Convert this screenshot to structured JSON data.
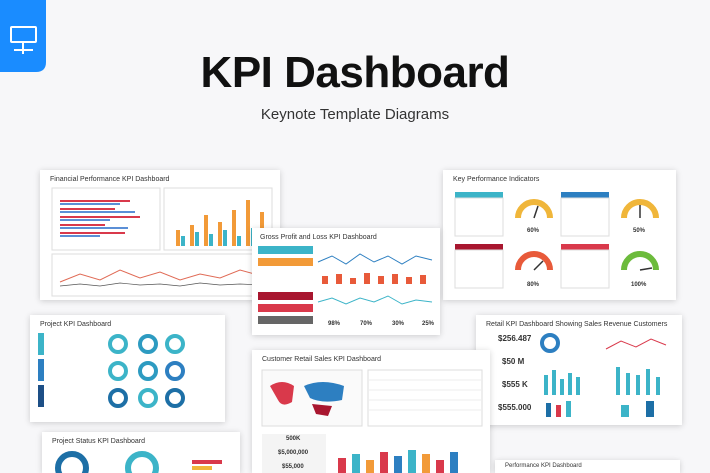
{
  "header": {
    "title": "KPI Dashboard",
    "subtitle": "Keynote Template Diagrams"
  },
  "slides": [
    {
      "title": "Financial Performance KPI Dashboard"
    },
    {
      "title": "Key Performance Indicators",
      "gauges": [
        "60%",
        "50%",
        "80%",
        "100%"
      ]
    },
    {
      "title": "Gross Profit and Loss KPI Dashboard",
      "stats": [
        "98%",
        "70%",
        "30%",
        "25%"
      ]
    },
    {
      "title": "Project KPI Dashboard"
    },
    {
      "title": "Retail KPI Dashboard Showing Sales Revenue Customers",
      "stats": [
        "$256.487",
        "$50 M",
        "$555 K",
        "$555.000"
      ]
    },
    {
      "title": "Customer Retail Sales KPI Dashboard",
      "stats": [
        "500K",
        "$5,000,000",
        "$55,000"
      ]
    },
    {
      "title": "Project Status KPI Dashboard"
    },
    {
      "title": "Performance KPI Dashboard"
    }
  ]
}
